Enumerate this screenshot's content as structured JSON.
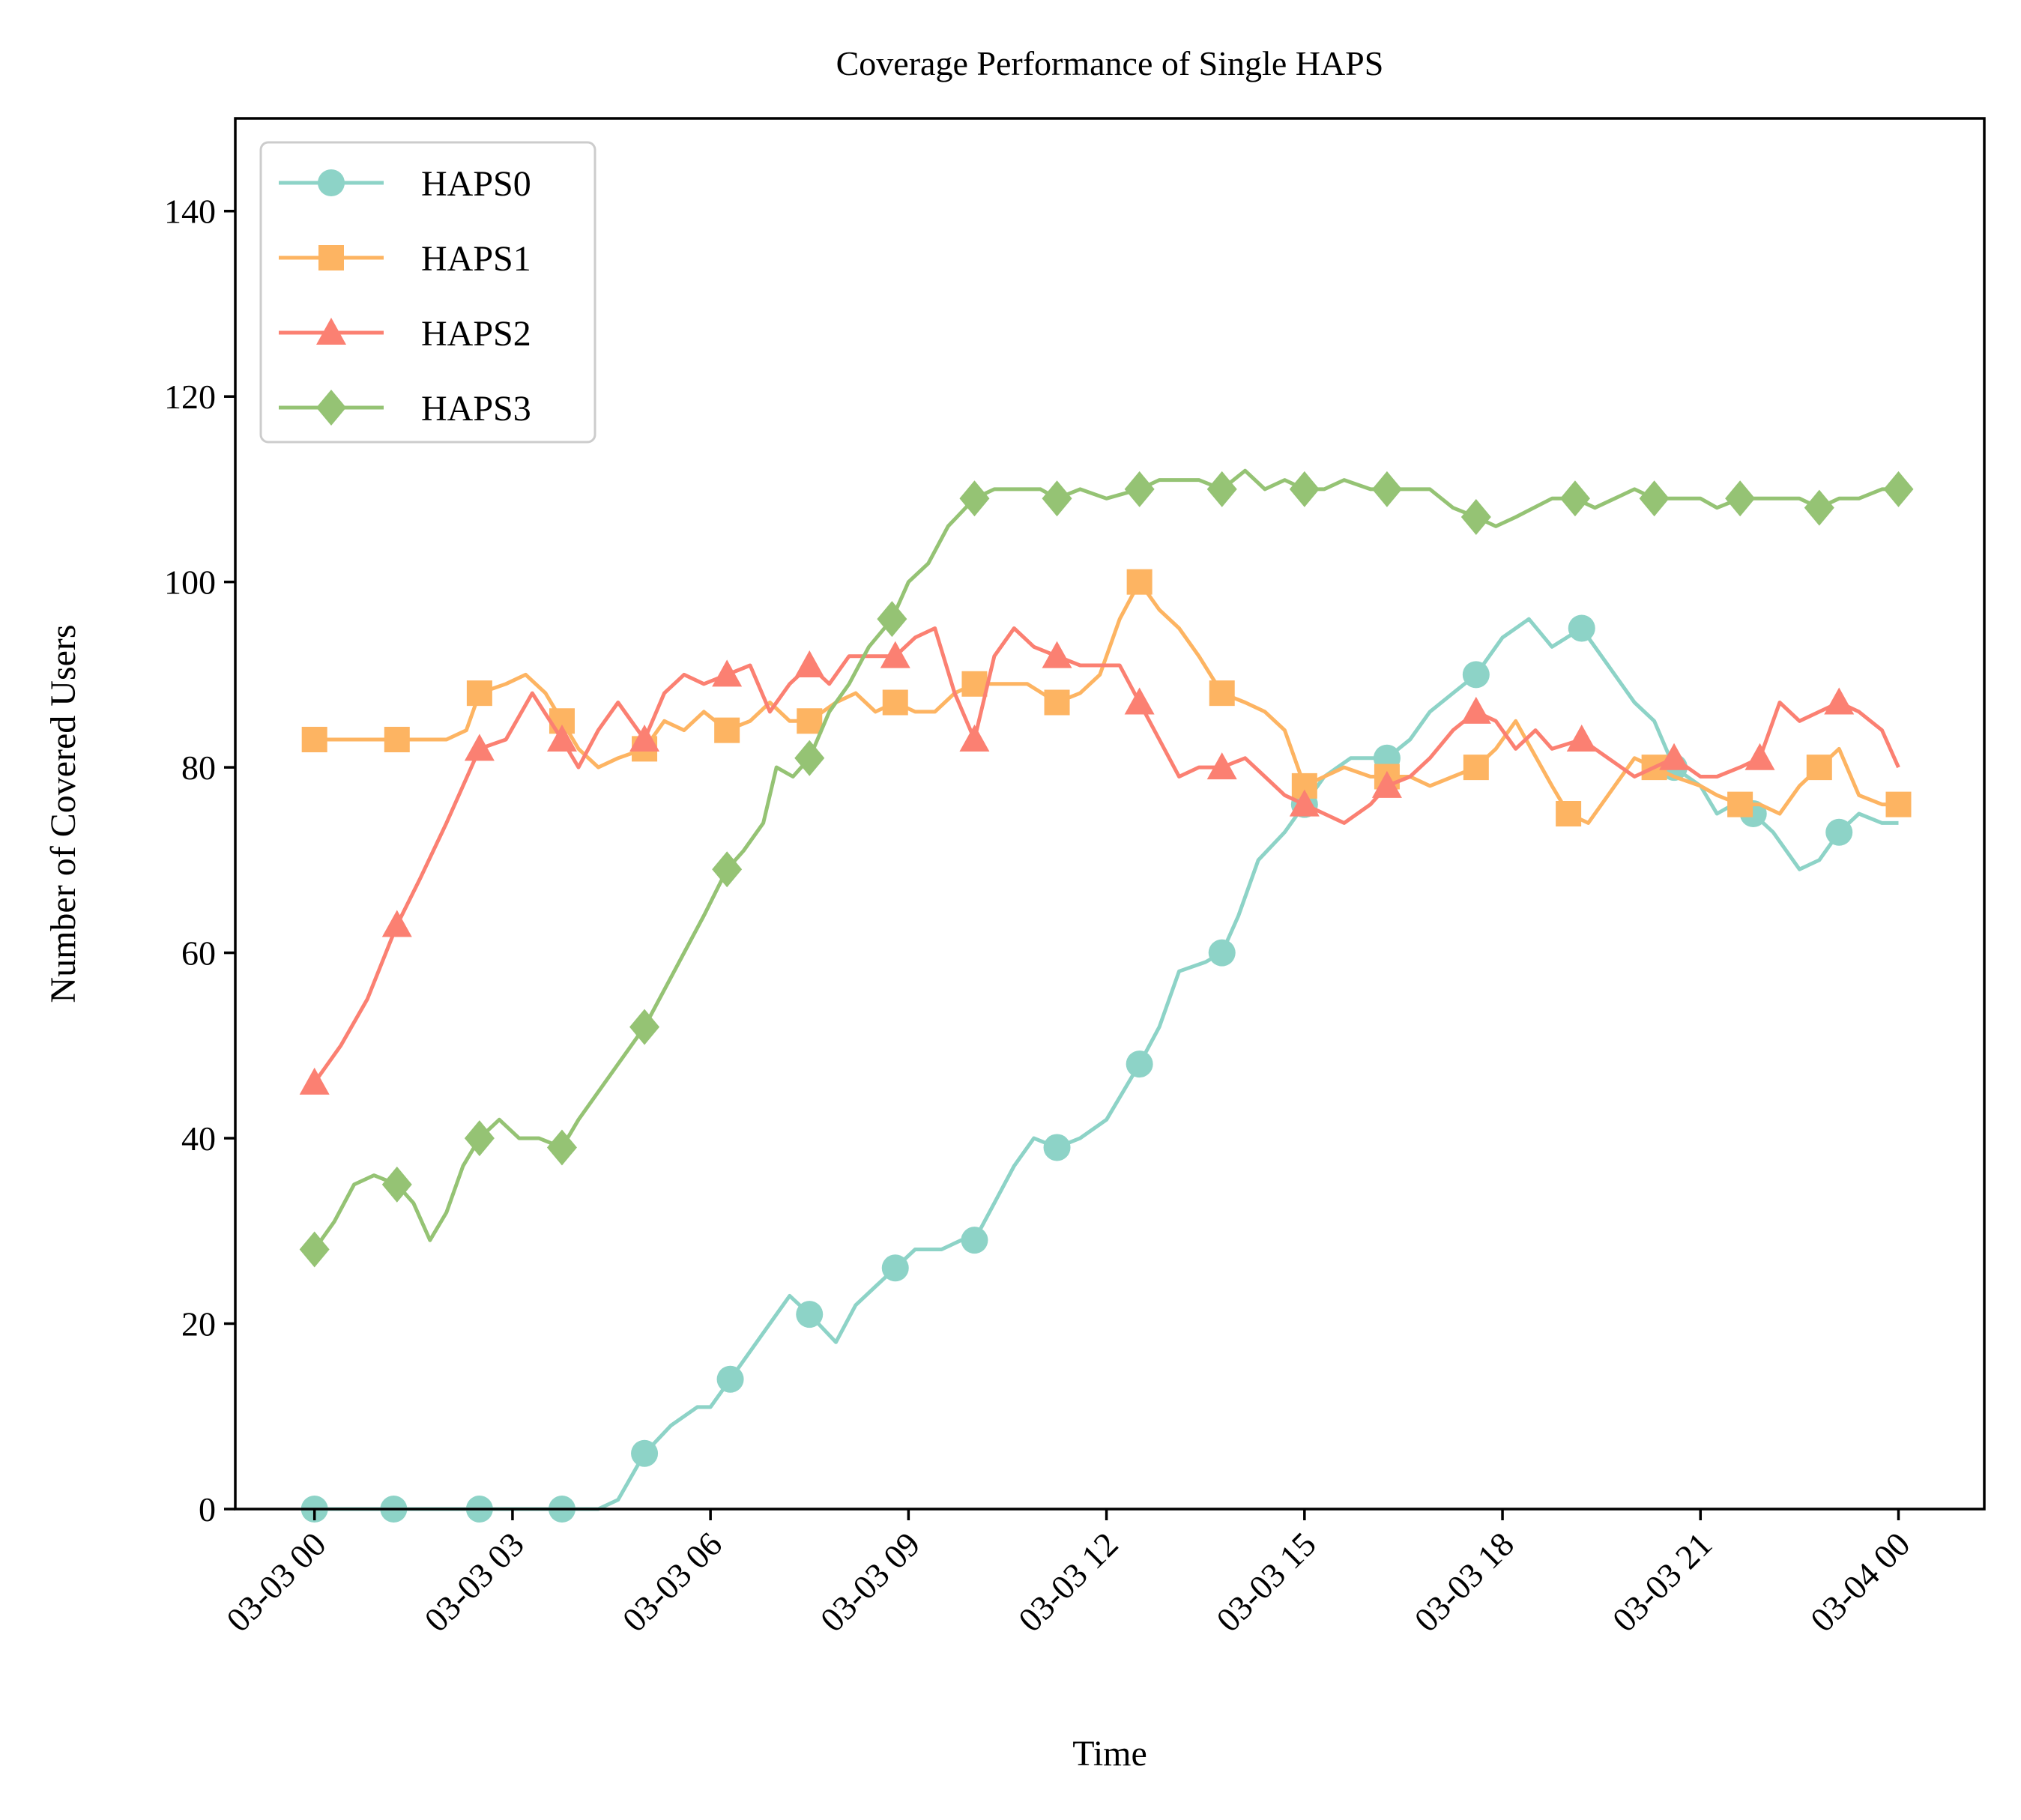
{
  "chart_data": {
    "type": "line",
    "title": "Coverage Performance of Single HAPS",
    "xlabel": "Time",
    "ylabel": "Number of Covered Users",
    "x_ticks": [
      "03-03 00",
      "03-03 03",
      "03-03 06",
      "03-03 09",
      "03-03 12",
      "03-03 15",
      "03-03 18",
      "03-03 21",
      "03-04 00"
    ],
    "y_ticks": [
      0,
      20,
      40,
      60,
      80,
      100,
      120,
      140
    ],
    "xlim_hours": [
      -1.2,
      25.3
    ],
    "ylim": [
      0,
      150
    ],
    "grid": false,
    "legend_position": "upper-left",
    "series": [
      {
        "name": "HAPS0",
        "color": "#8dd3c7",
        "marker": "circle",
        "x": [
          0,
          0.3,
          1.2,
          2.5,
          3.75,
          4.3,
          4.6,
          5.0,
          5.4,
          5.8,
          6.0,
          6.3,
          6.6,
          6.9,
          7.2,
          7.5,
          7.9,
          8.2,
          8.5,
          8.8,
          9.1,
          9.5,
          9.8,
          10.0,
          10.3,
          10.6,
          10.9,
          11.25,
          11.6,
          12.0,
          12.5,
          12.8,
          13.1,
          13.5,
          13.75,
          14.0,
          14.3,
          14.7,
          15.0,
          15.3,
          15.7,
          16.0,
          16.25,
          16.6,
          16.9,
          17.25,
          17.6,
          18.0,
          18.4,
          18.75,
          19.2,
          19.6,
          20.0,
          20.3,
          20.6,
          21.0,
          21.25,
          21.5,
          21.8,
          22.1,
          22.5,
          22.8,
          23.1,
          23.4,
          23.75,
          24.0
        ],
        "values": [
          0,
          0,
          0,
          0,
          0,
          0,
          1,
          6,
          9,
          11,
          11,
          14,
          17,
          20,
          23,
          21,
          18,
          22,
          24,
          26,
          28,
          28,
          29,
          29,
          33,
          37,
          40,
          39,
          40,
          42,
          48,
          52,
          58,
          59,
          60,
          64,
          70,
          73,
          76,
          79,
          81,
          81,
          81,
          83,
          86,
          88,
          90,
          94,
          96,
          93,
          95,
          91,
          87,
          85,
          80,
          78,
          75,
          76,
          75,
          73,
          69,
          70,
          73,
          75,
          74,
          74
        ]
      },
      {
        "name": "HAPS1",
        "color": "#fdb462",
        "marker": "square",
        "x": [
          0,
          0.6,
          1.25,
          2.0,
          2.3,
          2.5,
          2.9,
          3.2,
          3.5,
          3.75,
          4.0,
          4.3,
          4.6,
          5.0,
          5.3,
          5.6,
          5.9,
          6.25,
          6.6,
          6.9,
          7.2,
          7.5,
          7.9,
          8.2,
          8.5,
          8.8,
          9.1,
          9.4,
          9.7,
          10.0,
          10.4,
          10.8,
          11.25,
          11.6,
          11.9,
          12.2,
          12.5,
          12.8,
          13.1,
          13.4,
          13.75,
          14.1,
          14.4,
          14.7,
          15.0,
          15.3,
          15.6,
          16.0,
          16.25,
          16.6,
          16.9,
          17.25,
          17.6,
          17.9,
          18.2,
          18.75,
          19.0,
          19.3,
          19.6,
          20.0,
          20.3,
          20.6,
          21.0,
          21.25,
          21.6,
          21.9,
          22.2,
          22.5,
          22.8,
          23.1,
          23.4,
          23.75,
          24.0
        ],
        "values": [
          83,
          83,
          83,
          83,
          84,
          88,
          89,
          90,
          88,
          85,
          82,
          80,
          81,
          82,
          85,
          84,
          86,
          84,
          85,
          87,
          85,
          85,
          87,
          88,
          86,
          87,
          86,
          86,
          88,
          89,
          89,
          89,
          87,
          88,
          90,
          96,
          100,
          97,
          95,
          92,
          88,
          87,
          86,
          84,
          78,
          79,
          80,
          79,
          79,
          79,
          78,
          79,
          80,
          82,
          85,
          78,
          75,
          74,
          77,
          81,
          80,
          79,
          78,
          77,
          76,
          76,
          75,
          78,
          80,
          82,
          77,
          76,
          76
        ]
      },
      {
        "name": "HAPS2",
        "color": "#fb8072",
        "marker": "triangle",
        "x": [
          0,
          0.4,
          0.8,
          1.25,
          1.6,
          2.0,
          2.5,
          2.9,
          3.3,
          3.75,
          4.0,
          4.3,
          4.6,
          5.0,
          5.3,
          5.6,
          5.9,
          6.25,
          6.6,
          6.9,
          7.2,
          7.5,
          7.8,
          8.1,
          8.5,
          8.8,
          9.1,
          9.4,
          9.7,
          10.0,
          10.3,
          10.6,
          10.9,
          11.25,
          11.6,
          11.9,
          12.2,
          12.5,
          12.8,
          13.1,
          13.4,
          13.75,
          14.1,
          14.4,
          14.7,
          15.0,
          15.3,
          15.6,
          16.0,
          16.25,
          16.6,
          16.9,
          17.25,
          17.6,
          17.9,
          18.2,
          18.5,
          18.75,
          19.2,
          19.6,
          20.0,
          20.3,
          20.6,
          21.0,
          21.25,
          21.6,
          21.9,
          22.2,
          22.5,
          22.8,
          23.1,
          23.4,
          23.75,
          24.0
        ],
        "values": [
          46,
          50,
          55,
          63,
          68,
          74,
          82,
          83,
          88,
          83,
          80,
          84,
          87,
          83,
          88,
          90,
          89,
          90,
          91,
          86,
          89,
          91,
          89,
          92,
          92,
          92,
          94,
          95,
          88,
          83,
          92,
          95,
          93,
          92,
          91,
          91,
          91,
          87,
          83,
          79,
          80,
          80,
          81,
          79,
          77,
          76,
          75,
          74,
          76,
          78,
          79,
          81,
          84,
          86,
          85,
          82,
          84,
          82,
          83,
          81,
          79,
          80,
          81,
          79,
          79,
          80,
          81,
          87,
          85,
          86,
          87,
          86,
          84,
          80
        ]
      },
      {
        "name": "HAPS3",
        "color": "#95c374",
        "marker": "diamond",
        "x": [
          0,
          0.3,
          0.6,
          0.9,
          1.25,
          1.5,
          1.75,
          2.0,
          2.25,
          2.5,
          2.8,
          3.1,
          3.4,
          3.75,
          4.0,
          4.3,
          4.6,
          5.0,
          5.3,
          5.6,
          5.9,
          6.25,
          6.5,
          6.8,
          7.0,
          7.25,
          7.5,
          7.8,
          8.1,
          8.4,
          8.75,
          9.0,
          9.3,
          9.6,
          10.0,
          10.3,
          10.6,
          11.0,
          11.25,
          11.6,
          12.0,
          12.5,
          12.8,
          13.1,
          13.4,
          13.75,
          14.1,
          14.4,
          14.7,
          15.0,
          15.3,
          15.6,
          16.0,
          16.25,
          16.6,
          16.9,
          17.25,
          17.6,
          17.9,
          18.2,
          18.75,
          19.1,
          19.4,
          19.7,
          20.0,
          20.3,
          20.6,
          21.0,
          21.25,
          21.6,
          21.9,
          22.2,
          22.5,
          22.8,
          23.1,
          23.4,
          23.75,
          24.0
        ],
        "values": [
          28,
          31,
          35,
          36,
          35,
          33,
          29,
          32,
          37,
          40,
          42,
          40,
          40,
          39,
          42,
          45,
          48,
          52,
          56,
          60,
          64,
          69,
          71,
          74,
          80,
          79,
          81,
          86,
          89,
          93,
          96,
          100,
          102,
          106,
          109,
          110,
          110,
          110,
          109,
          110,
          109,
          110,
          111,
          111,
          111,
          110,
          112,
          110,
          111,
          110,
          110,
          111,
          110,
          110,
          110,
          110,
          108,
          107,
          106,
          107,
          109,
          109,
          108,
          109,
          110,
          109,
          109,
          109,
          108,
          109,
          109,
          109,
          109,
          108,
          109,
          109,
          110,
          110
        ]
      }
    ]
  }
}
